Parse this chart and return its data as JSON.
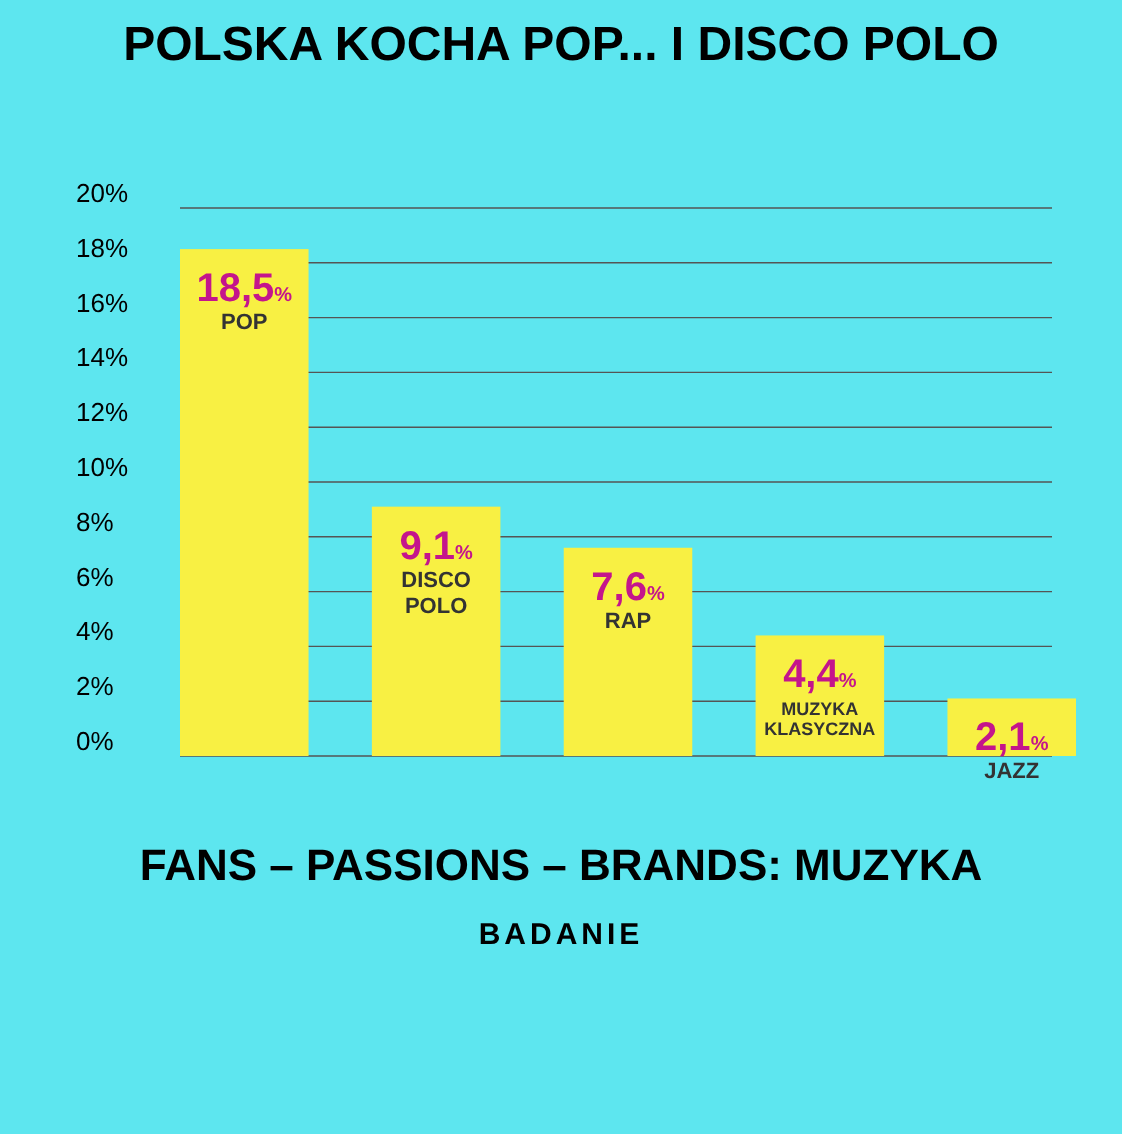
{
  "chart_data": {
    "type": "bar",
    "title": "POLSKA KOCHA POP... I DISCO POLO",
    "categories": [
      "POP",
      "DISCO POLO",
      "RAP",
      "MUZYKA KLASYCZNA",
      "JAZZ"
    ],
    "values": [
      18.5,
      9.1,
      7.6,
      4.4,
      2.1
    ],
    "value_labels": [
      "18,5%",
      "9,1%",
      "7,6%",
      "4,4%",
      "2,1%"
    ],
    "color": "#f8f043",
    "ylim": [
      0,
      20
    ],
    "yticks": [
      {
        "value": 0,
        "label": "0%"
      },
      {
        "value": 2,
        "label": "2%"
      },
      {
        "value": 4,
        "label": "4%"
      },
      {
        "value": 6,
        "label": "6%"
      },
      {
        "value": 8,
        "label": "8%"
      },
      {
        "value": 10,
        "label": "10%"
      },
      {
        "value": 12,
        "label": "12%"
      },
      {
        "value": 14,
        "label": "14%"
      },
      {
        "value": 16,
        "label": "16%"
      },
      {
        "value": 18,
        "label": "18%"
      },
      {
        "value": 20,
        "label": "20%"
      }
    ],
    "grid": "y",
    "annotations": [
      "FANS – PASSIONS – BRANDS: MUZYKA",
      "BADANIE"
    ]
  }
}
